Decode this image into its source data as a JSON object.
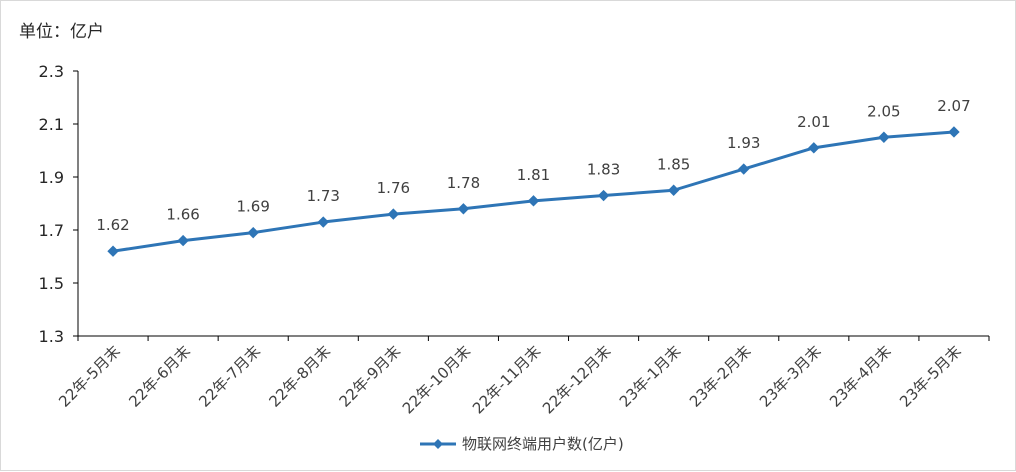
{
  "chart_data": {
    "type": "line",
    "unit_label": "单位：亿户",
    "categories": [
      "22年-5月末",
      "22年-6月末",
      "22年-7月末",
      "22年-8月末",
      "22年-9月末",
      "22年-10月末",
      "22年-11月末",
      "22年-12月末",
      "23年-1月末",
      "23年-2月末",
      "23年-3月末",
      "23年-4月末",
      "23年-5月末"
    ],
    "series": [
      {
        "name": "物联网终端用户数(亿户)",
        "values": [
          1.62,
          1.66,
          1.69,
          1.73,
          1.76,
          1.78,
          1.81,
          1.83,
          1.85,
          1.93,
          2.01,
          2.05,
          2.07
        ],
        "color": "#2e75b6"
      }
    ],
    "ylim": [
      1.3,
      2.3
    ],
    "y_ticks": [
      "1.3",
      "1.5",
      "1.7",
      "1.9",
      "2.1",
      "2.3"
    ],
    "grid": false,
    "legend_position": "bottom",
    "axis_color": "#000000"
  }
}
